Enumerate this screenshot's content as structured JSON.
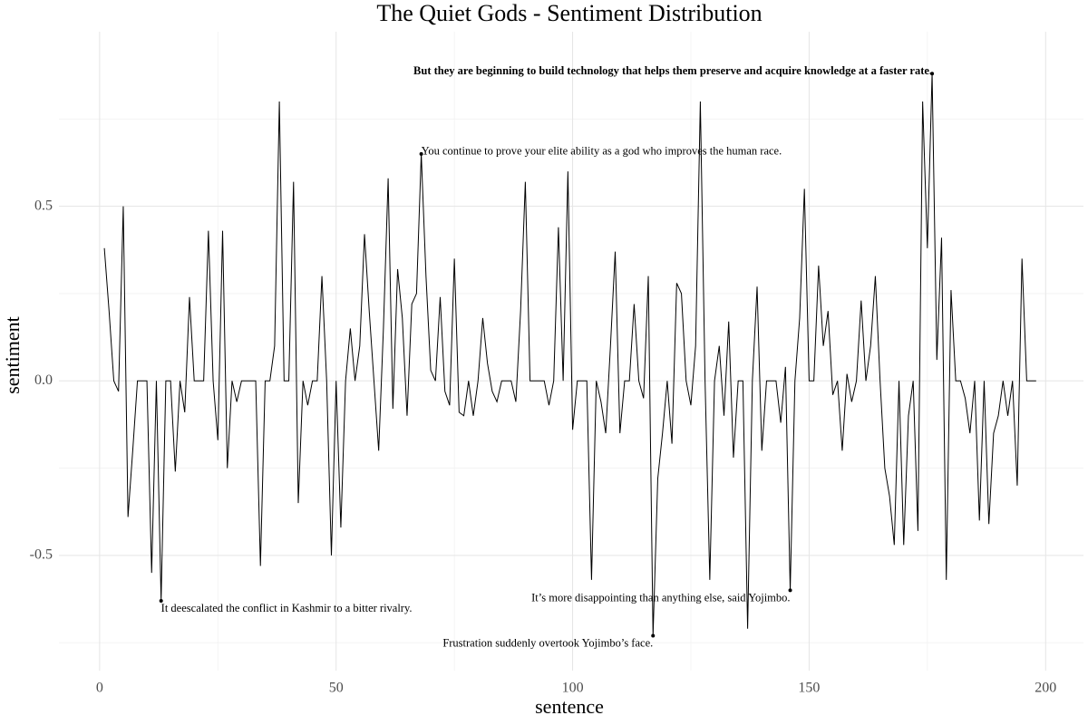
{
  "chart_data": {
    "type": "line",
    "title": "The Quiet Gods - Sentiment Distribution",
    "x_label": "sentence",
    "y_label": "sentiment",
    "color": "#000000",
    "xlim": [
      -8.6,
      208
    ],
    "ylim": [
      -0.83,
      1.0
    ],
    "xticks": [
      0,
      50,
      100,
      150,
      200
    ],
    "yticks": [
      -0.5,
      {
        "value": 0,
        "label": "0.0"
      },
      0.5
    ],
    "x_minor": [
      25,
      75,
      125,
      175
    ],
    "y_minor": [
      -0.75,
      -0.25,
      0.25,
      0.75
    ],
    "grid": true,
    "x": [
      1,
      2,
      3,
      4,
      5,
      6,
      7,
      8,
      9,
      10,
      11,
      12,
      13,
      14,
      15,
      16,
      17,
      18,
      19,
      20,
      21,
      22,
      23,
      24,
      25,
      26,
      27,
      28,
      29,
      30,
      31,
      32,
      33,
      34,
      35,
      36,
      37,
      38,
      39,
      40,
      41,
      42,
      43,
      44,
      45,
      46,
      47,
      48,
      49,
      50,
      51,
      52,
      53,
      54,
      55,
      56,
      57,
      58,
      59,
      60,
      61,
      62,
      63,
      64,
      65,
      66,
      67,
      68,
      69,
      70,
      71,
      72,
      73,
      74,
      75,
      76,
      77,
      78,
      79,
      80,
      81,
      82,
      83,
      84,
      85,
      86,
      87,
      88,
      89,
      90,
      91,
      92,
      93,
      94,
      95,
      96,
      97,
      98,
      99,
      100,
      101,
      102,
      103,
      104,
      105,
      106,
      107,
      108,
      109,
      110,
      111,
      112,
      113,
      114,
      115,
      116,
      117,
      118,
      119,
      120,
      121,
      122,
      123,
      124,
      125,
      126,
      127,
      128,
      129,
      130,
      131,
      132,
      133,
      134,
      135,
      136,
      137,
      138,
      139,
      140,
      141,
      142,
      143,
      144,
      145,
      146,
      147,
      148,
      149,
      150,
      151,
      152,
      153,
      154,
      155,
      156,
      157,
      158,
      159,
      160,
      161,
      162,
      163,
      164,
      165,
      166,
      167,
      168,
      169,
      170,
      171,
      172,
      173,
      174,
      175,
      176,
      177,
      178,
      179,
      180,
      181,
      182,
      183,
      184,
      185,
      186,
      187,
      188,
      189,
      190,
      191,
      192,
      193,
      194,
      195,
      196,
      197,
      198
    ],
    "values": [
      0.38,
      0.2,
      0,
      -0.03,
      0.5,
      -0.39,
      -0.2,
      0,
      0,
      0,
      -0.55,
      0,
      -0.63,
      0,
      0,
      -0.26,
      0,
      -0.09,
      0.24,
      0,
      0,
      0,
      0.43,
      0,
      -0.17,
      0.43,
      -0.25,
      0,
      -0.06,
      0,
      0,
      0,
      0,
      -0.53,
      0,
      0,
      0.1,
      0.8,
      0,
      0,
      0.57,
      -0.35,
      0,
      -0.07,
      0,
      0,
      0.3,
      0,
      -0.5,
      0,
      -0.42,
      0,
      0.15,
      0,
      0.1,
      0.42,
      0.2,
      0,
      -0.2,
      0.15,
      0.58,
      -0.08,
      0.32,
      0.18,
      -0.1,
      0.22,
      0.25,
      0.65,
      0.3,
      0.03,
      0,
      0.24,
      -0.03,
      -0.07,
      0.35,
      -0.09,
      -0.1,
      0,
      -0.1,
      0,
      0.18,
      0.05,
      -0.03,
      -0.06,
      0,
      0,
      0,
      -0.06,
      0.2,
      0.57,
      0,
      0,
      0,
      0,
      -0.07,
      0,
      0.44,
      0,
      0.6,
      -0.14,
      0,
      0,
      0,
      -0.57,
      0,
      -0.06,
      -0.15,
      0.1,
      0.37,
      -0.15,
      0,
      0,
      0.22,
      0,
      -0.05,
      0.3,
      -0.73,
      -0.28,
      -0.15,
      0,
      -0.18,
      0.28,
      0.25,
      0,
      -0.07,
      0.1,
      0.8,
      0,
      -0.57,
      0,
      0.1,
      -0.1,
      0.17,
      -0.22,
      0,
      0,
      -0.71,
      0,
      0.27,
      -0.2,
      0,
      0,
      0,
      -0.12,
      0.04,
      -0.6,
      0,
      0.18,
      0.55,
      0,
      0,
      0.33,
      0.1,
      0.2,
      -0.04,
      0,
      -0.2,
      0.02,
      -0.06,
      0,
      0.23,
      0,
      0.1,
      0.3,
      0,
      -0.25,
      -0.33,
      -0.47,
      0,
      -0.47,
      -0.1,
      0,
      -0.43,
      0.8,
      0.38,
      0.88,
      0.06,
      0.41,
      -0.57,
      0.26,
      0,
      0,
      -0.05,
      -0.15,
      0,
      -0.4,
      0,
      -0.41,
      -0.15,
      -0.1,
      0,
      -0.1,
      0,
      -0.3,
      0.35,
      0,
      0,
      0
    ],
    "annotations": [
      {
        "text": "But they are beginning to build technology that helps them preserve and acquire knowledge at a faster rate.",
        "x": 176,
        "y": 0.88,
        "align": "end"
      },
      {
        "text": "You continue to prove your elite ability as a god who improves the human race.",
        "x": 68,
        "y": 0.65,
        "align": "start"
      },
      {
        "text": "It deescalated the conflict in Kashmir to a bitter rivalry.",
        "x": 13,
        "y": -0.63,
        "align": "start"
      },
      {
        "text": "It’s more disappointing than anything else, said Yojimbo.",
        "x": 146,
        "y": -0.6,
        "align": "end"
      },
      {
        "text": "Frustration suddenly overtook Yojimbo’s face.",
        "x": 117,
        "y": -0.73,
        "align": "end"
      }
    ]
  }
}
